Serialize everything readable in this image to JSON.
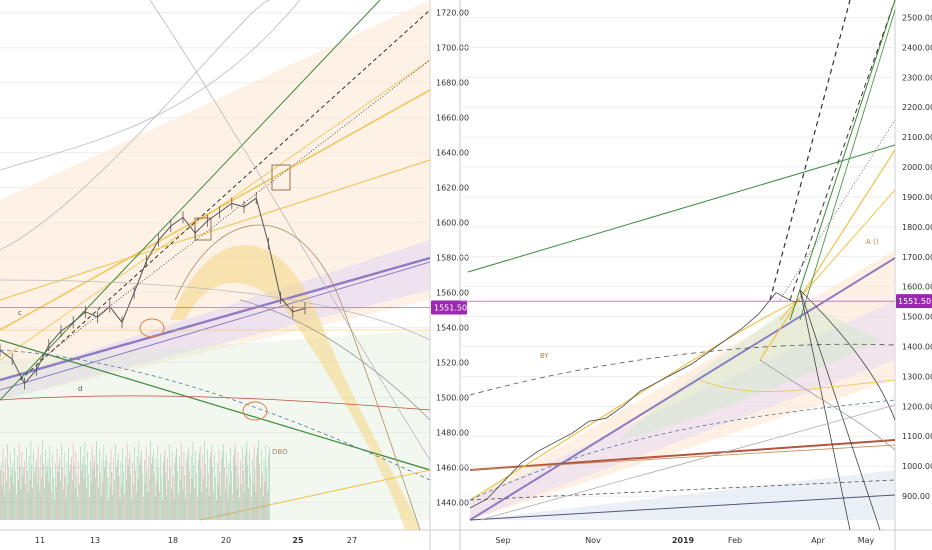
{
  "colors": {
    "background": "#ffffff",
    "grid": "#eeeeee",
    "price_line": "#b36bdc",
    "price_tag": "#9c27b0",
    "candle": "#555555",
    "vol_up": "#7fbf9a",
    "vol_down": "#e08a8a",
    "gann_gold": "#f0c24a",
    "gann_green": "#3e8a3e",
    "gann_purple": "#8e7cc3",
    "gann_red": "#b5553a",
    "arc_fill": "#f3d98c",
    "fan_fill_orange": "#fde6cf",
    "fan_fill_purple": "#e4d8f5",
    "fan_fill_green": "#d9ead3"
  },
  "chart_data": [
    {
      "type": "line",
      "panel": "left",
      "y_axis_labels": [
        "1720.00",
        "1700.00",
        "1680.00",
        "1660.00",
        "1640.00",
        "1620.00",
        "1600.00",
        "1580.00",
        "1560.00",
        "1540.00",
        "1520.00",
        "1500.00",
        "1480.00",
        "1460.00",
        "1440.00"
      ],
      "ylim": [
        1430,
        1725
      ],
      "x_tick_labels": [
        "11",
        "13",
        "18",
        "20",
        "25",
        "27"
      ],
      "x_bold_labels": [
        "25"
      ],
      "last_price_label": "1551.50",
      "annotations": [
        "c",
        "d",
        "DBO"
      ],
      "series": [
        {
          "x": [
            0,
            4,
            8,
            12,
            16,
            20,
            24,
            28,
            32,
            36,
            40,
            44,
            48,
            52,
            56,
            60,
            64,
            68,
            72,
            76,
            80,
            84,
            88,
            92,
            96,
            100
          ],
          "values": [
            1527,
            1522,
            1508,
            1516,
            1530,
            1538,
            1543,
            1549,
            1546,
            1552,
            1543,
            1560,
            1578,
            1590,
            1598,
            1603,
            1594,
            1601,
            1606,
            1611,
            1609,
            1614,
            1588,
            1557,
            1549,
            1551
          ]
        }
      ]
    },
    {
      "type": "line",
      "panel": "right",
      "y_axis_labels": [
        "2500.00",
        "2400.00",
        "2300.00",
        "2200.00",
        "2100.00",
        "2000.00",
        "1900.00",
        "1800.00",
        "1700.00",
        "1600.00",
        "1500.00",
        "1400.00",
        "1300.00",
        "1200.00",
        "1100.00",
        "1000.00",
        "900.00"
      ],
      "ylim": [
        820,
        2545
      ],
      "x_tick_labels": [
        "Sep",
        "Nov",
        "2019",
        "Feb",
        "Apr",
        "May"
      ],
      "x_bold_labels": [
        "2019"
      ],
      "last_price_label": "1551.50",
      "annotations": [
        "BY",
        "A ()"
      ],
      "series": [
        {
          "x": [
            0,
            5,
            10,
            15,
            20,
            25,
            30,
            35,
            40,
            45,
            50,
            55,
            60,
            65,
            70,
            75,
            80,
            85,
            90,
            95,
            100
          ],
          "values": [
            860,
            890,
            950,
            1010,
            1050,
            1080,
            1110,
            1150,
            1160,
            1200,
            1250,
            1280,
            1310,
            1340,
            1380,
            1420,
            1460,
            1510,
            1580,
            1550,
            1551
          ]
        }
      ]
    }
  ]
}
